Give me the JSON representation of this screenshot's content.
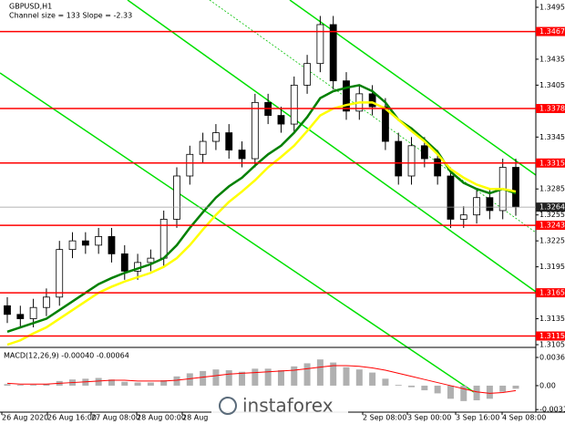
{
  "chart_data": {
    "type": "candlestick",
    "symbol": "GBPUSD,H1",
    "subtitle": "Channel size = 133 Slope = -2.33",
    "ylim": [
      1.3105,
      1.3495
    ],
    "yticks": [
      1.3495,
      1.3435,
      1.3405,
      1.3345,
      1.3285,
      1.3255,
      1.3225,
      1.3195,
      1.3135,
      1.3105
    ],
    "x_labels": [
      "26 Aug 2020",
      "26 Aug 16:00",
      "27 Aug 08:00",
      "28 Aug 00:00",
      "28 Aug",
      "2 Sep 08:00",
      "3 Sep 00:00",
      "3 Sep 16:00",
      "4 Sep 08:00"
    ],
    "open": [
      1.315,
      1.314,
      1.3135,
      1.3148,
      1.316,
      1.3215,
      1.3225,
      1.322,
      1.323,
      1.321,
      1.319,
      1.32,
      1.3205,
      1.325,
      1.33,
      1.3325,
      1.334,
      1.335,
      1.333,
      1.332,
      1.3385,
      1.337,
      1.336,
      1.3405,
      1.343,
      1.3475,
      1.341,
      1.3375,
      1.3395,
      1.338,
      1.334,
      1.33,
      1.3335,
      1.332,
      1.33,
      1.325,
      1.3255,
      1.3275,
      1.326,
      1.331
    ],
    "high": [
      1.316,
      1.315,
      1.3158,
      1.317,
      1.3225,
      1.3235,
      1.3235,
      1.324,
      1.324,
      1.322,
      1.321,
      1.3215,
      1.326,
      1.331,
      1.3335,
      1.335,
      1.336,
      1.336,
      1.334,
      1.3395,
      1.3395,
      1.338,
      1.3415,
      1.344,
      1.3485,
      1.3485,
      1.342,
      1.3405,
      1.3405,
      1.339,
      1.335,
      1.3345,
      1.3345,
      1.333,
      1.331,
      1.3265,
      1.3285,
      1.3285,
      1.332,
      1.332
    ],
    "low": [
      1.313,
      1.3125,
      1.3125,
      1.3138,
      1.315,
      1.3205,
      1.321,
      1.321,
      1.32,
      1.318,
      1.318,
      1.319,
      1.3195,
      1.324,
      1.329,
      1.3315,
      1.333,
      1.332,
      1.331,
      1.331,
      1.336,
      1.335,
      1.335,
      1.3395,
      1.342,
      1.34,
      1.3365,
      1.3365,
      1.337,
      1.333,
      1.329,
      1.329,
      1.331,
      1.329,
      1.324,
      1.324,
      1.3245,
      1.325,
      1.325,
      1.3254
    ],
    "close": [
      1.314,
      1.3135,
      1.3148,
      1.316,
      1.3215,
      1.3225,
      1.322,
      1.323,
      1.321,
      1.319,
      1.32,
      1.3205,
      1.325,
      1.33,
      1.3325,
      1.334,
      1.335,
      1.333,
      1.332,
      1.3385,
      1.337,
      1.336,
      1.3405,
      1.343,
      1.3475,
      1.341,
      1.3375,
      1.3395,
      1.338,
      1.334,
      1.33,
      1.3335,
      1.332,
      1.33,
      1.325,
      1.3255,
      1.3275,
      1.326,
      1.331,
      1.3264
    ],
    "series": [
      {
        "color": "#008000",
        "values": [
          1.312,
          1.3125,
          1.313,
          1.3135,
          1.3145,
          1.3155,
          1.3165,
          1.3175,
          1.3182,
          1.3188,
          1.3193,
          1.3198,
          1.3205,
          1.322,
          1.324,
          1.3258,
          1.3275,
          1.3288,
          1.3298,
          1.3312,
          1.3325,
          1.3335,
          1.335,
          1.3368,
          1.339,
          1.3398,
          1.3402,
          1.3405,
          1.3398,
          1.3385,
          1.3365,
          1.3355,
          1.3342,
          1.3328,
          1.3305,
          1.3292,
          1.3285,
          1.328,
          1.3285,
          1.328
        ]
      },
      {
        "color": "#ffff00",
        "values": [
          1.3105,
          1.311,
          1.3118,
          1.3125,
          1.3135,
          1.3145,
          1.3155,
          1.3165,
          1.3172,
          1.3178,
          1.3183,
          1.3188,
          1.3195,
          1.3205,
          1.322,
          1.3238,
          1.3255,
          1.327,
          1.3282,
          1.3295,
          1.331,
          1.3322,
          1.3335,
          1.3352,
          1.337,
          1.3378,
          1.3382,
          1.3385,
          1.3385,
          1.3378,
          1.3365,
          1.3352,
          1.334,
          1.3325,
          1.3308,
          1.3298,
          1.329,
          1.3285,
          1.3285,
          1.3282
        ]
      }
    ],
    "levels": [
      1.3467,
      1.3378,
      1.3315,
      1.3243,
      1.3165,
      1.3115
    ],
    "level_color": "#ff0000",
    "current_price": 1.3264,
    "macd": {
      "label": "MACD(12,26,9) -0.00040 -0.00064",
      "ylim": [
        -0.0032,
        0.00366
      ],
      "yticks": [
        0.00366,
        {
          "value": 0,
          "label": "0.00"
        },
        {
          "value": -0.0031,
          "label": "-0.00310"
        }
      ],
      "histogram": [
        0.0002,
        0.0001,
        0.0001,
        0.0002,
        0.0006,
        0.0008,
        0.0009,
        0.001,
        0.0008,
        0.0005,
        0.0004,
        0.0004,
        0.0007,
        0.0012,
        0.0016,
        0.0019,
        0.0021,
        0.002,
        0.0018,
        0.0022,
        0.0022,
        0.002,
        0.0025,
        0.0029,
        0.0034,
        0.003,
        0.0024,
        0.0021,
        0.0017,
        0.0009,
        0.0001,
        -0.0002,
        -0.0006,
        -0.001,
        -0.0017,
        -0.002,
        -0.0019,
        -0.0017,
        -0.0008,
        -0.0004
      ],
      "signal": [
        0.0003,
        0.0002,
        0.0002,
        0.0002,
        0.0003,
        0.0004,
        0.0005,
        0.0006,
        0.0007,
        0.0007,
        0.0006,
        0.0006,
        0.0006,
        0.0007,
        0.0009,
        0.0011,
        0.0013,
        0.0015,
        0.0016,
        0.0017,
        0.0018,
        0.0019,
        0.002,
        0.0022,
        0.0024,
        0.0026,
        0.0026,
        0.0025,
        0.0023,
        0.002,
        0.0016,
        0.0012,
        0.0008,
        0.0004,
        0,
        -0.0004,
        -0.0008,
        -0.001,
        -0.0009,
        -0.00064
      ],
      "histogram_color": "#b0b0b0",
      "signal_color": "#ff0000"
    },
    "watermark": "instaforex"
  }
}
